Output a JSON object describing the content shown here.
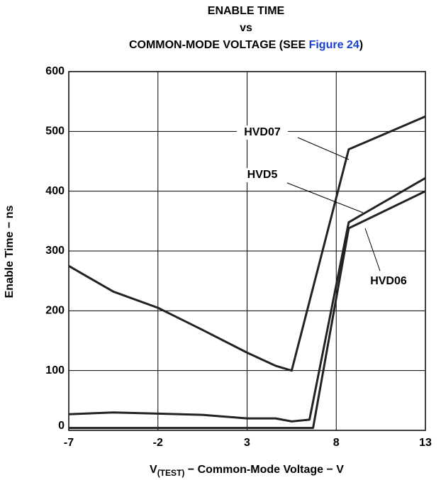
{
  "chart_data": {
    "type": "line",
    "title": [
      "ENABLE TIME",
      "vs",
      "COMMON-MODE VOLTAGE (SEE ",
      "Figure 24",
      ")"
    ],
    "x_label": [
      "V",
      "(TEST)",
      " − Common-Mode Voltage − V"
    ],
    "y_label": "Enable Time − ns",
    "series": [
      {
        "name": "HVD07",
        "color": "#222222",
        "x": [
          -7,
          -4.5,
          -2,
          0.5,
          3,
          4.6,
          5.5,
          8.7,
          13
        ],
        "values": [
          275,
          232,
          205,
          168,
          130,
          108,
          100,
          470,
          525
        ]
      },
      {
        "name": "HVD5",
        "color": "#222222",
        "x": [
          -7,
          -4.5,
          -2,
          0.5,
          3,
          4.2,
          4.6,
          5.5,
          6.5,
          8.7,
          13
        ],
        "values": [
          27,
          30,
          28,
          26,
          20,
          20,
          20,
          15,
          18,
          348,
          422
        ]
      },
      {
        "name": "HVD06",
        "color": "#222222",
        "x": [
          -7,
          6.7,
          8.7,
          13
        ],
        "values": [
          4,
          4,
          338,
          400
        ]
      }
    ],
    "xlim": [
      -7,
      13
    ],
    "xticks": [
      -7,
      -2,
      3,
      8,
      13
    ],
    "ylim": [
      0,
      600
    ],
    "yticks": [
      0,
      100,
      200,
      300,
      400,
      500,
      600
    ],
    "grid": true
  }
}
